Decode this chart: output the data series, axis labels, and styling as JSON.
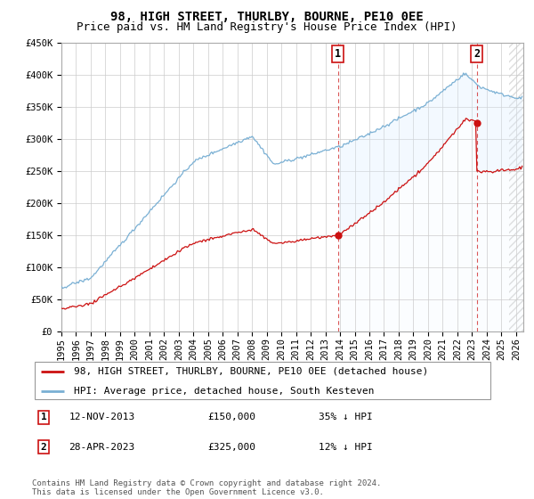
{
  "title": "98, HIGH STREET, THURLBY, BOURNE, PE10 0EE",
  "subtitle": "Price paid vs. HM Land Registry's House Price Index (HPI)",
  "ylim": [
    0,
    450000
  ],
  "yticks": [
    0,
    50000,
    100000,
    150000,
    200000,
    250000,
    300000,
    350000,
    400000,
    450000
  ],
  "xlim_start": 1995.0,
  "xlim_end": 2026.5,
  "transaction1_date": 2013.87,
  "transaction1_price": 150000,
  "transaction2_date": 2023.33,
  "transaction2_price": 325000,
  "hpi_color": "#7ab0d4",
  "hpi_fill_color": "#ddeeff",
  "price_color": "#cc1111",
  "vline_color": "#cc1111",
  "background_color": "#ffffff",
  "grid_color": "#cccccc",
  "hatch_color": "#bbbbbb",
  "legend_label_price": "98, HIGH STREET, THURLBY, BOURNE, PE10 0EE (detached house)",
  "legend_label_hpi": "HPI: Average price, detached house, South Kesteven",
  "title_fontsize": 10,
  "subtitle_fontsize": 9,
  "tick_fontsize": 7.5,
  "legend_fontsize": 8,
  "annotation_fontsize": 8,
  "footer_fontsize": 6.5
}
